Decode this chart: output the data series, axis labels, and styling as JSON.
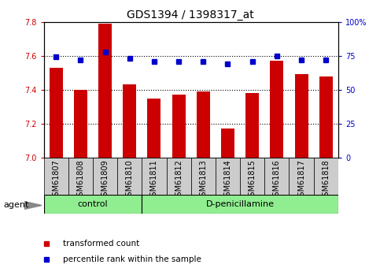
{
  "title": "GDS1394 / 1398317_at",
  "samples": [
    "GSM61807",
    "GSM61808",
    "GSM61809",
    "GSM61810",
    "GSM61811",
    "GSM61812",
    "GSM61813",
    "GSM61814",
    "GSM61815",
    "GSM61816",
    "GSM61817",
    "GSM61818"
  ],
  "red_values": [
    7.53,
    7.4,
    7.79,
    7.43,
    7.35,
    7.37,
    7.39,
    7.17,
    7.38,
    7.57,
    7.49,
    7.48
  ],
  "blue_values": [
    74,
    72,
    78,
    73,
    71,
    71,
    71,
    69,
    71,
    75,
    72,
    72
  ],
  "ylim_left": [
    7.0,
    7.8
  ],
  "ylim_right": [
    0,
    100
  ],
  "yticks_left": [
    7.0,
    7.2,
    7.4,
    7.6,
    7.8
  ],
  "yticks_right": [
    0,
    25,
    50,
    75,
    100
  ],
  "group_separator": 4,
  "n_samples": 12,
  "control_label": "control",
  "dpeni_label": "D-penicillamine",
  "group_color": "#90ee90",
  "bar_color": "#cc0000",
  "dot_color": "#0000cc",
  "grid_color": "#000000",
  "bg_color": "#ffffff",
  "tick_bg": "#cccccc",
  "legend_red_label": "transformed count",
  "legend_blue_label": "percentile rank within the sample",
  "agent_label": "agent",
  "left_label_color": "#cc0000",
  "right_label_color": "#0000cc",
  "gridlines_at": [
    7.2,
    7.4,
    7.6
  ],
  "title_fontsize": 10,
  "tick_fontsize": 7,
  "group_fontsize": 8,
  "legend_fontsize": 7.5
}
